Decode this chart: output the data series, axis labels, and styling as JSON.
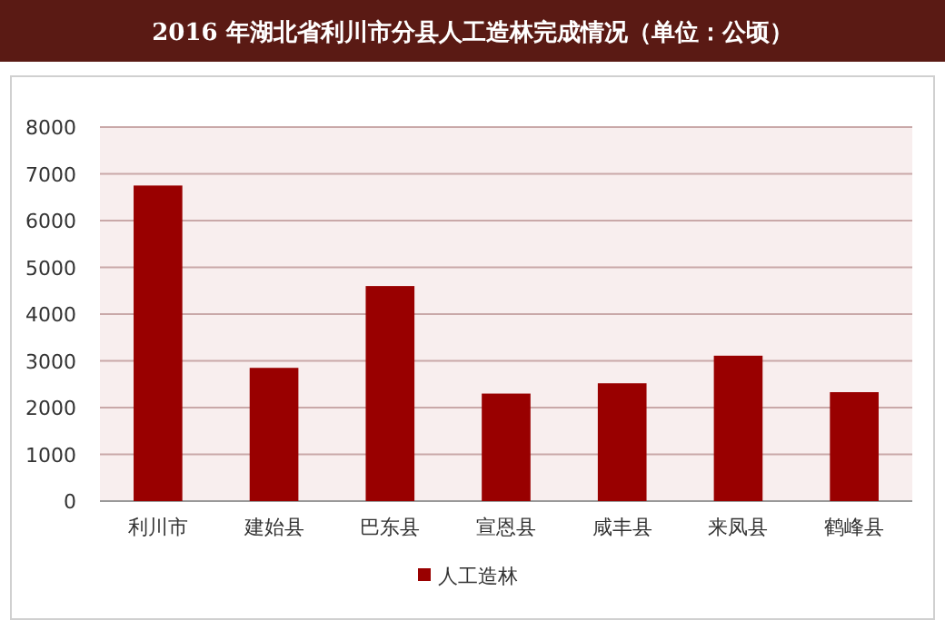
{
  "chart_data": {
    "type": "bar",
    "title": "2016 年湖北省利川市分县人工造林完成情况（单位：公顷）",
    "categories": [
      "利川市",
      "建始县",
      "巴东县",
      "宣恩县",
      "咸丰县",
      "来凤县",
      "鹤峰县"
    ],
    "series": [
      {
        "name": "人工造林",
        "color": "#990000",
        "values": [
          6750,
          2850,
          4600,
          2300,
          2520,
          3110,
          2330
        ]
      }
    ],
    "ylim": [
      0,
      8000
    ],
    "yticks": [
      0,
      1000,
      2000,
      3000,
      4000,
      5000,
      6000,
      7000,
      8000
    ],
    "grid": "y",
    "legend": "bottom"
  }
}
